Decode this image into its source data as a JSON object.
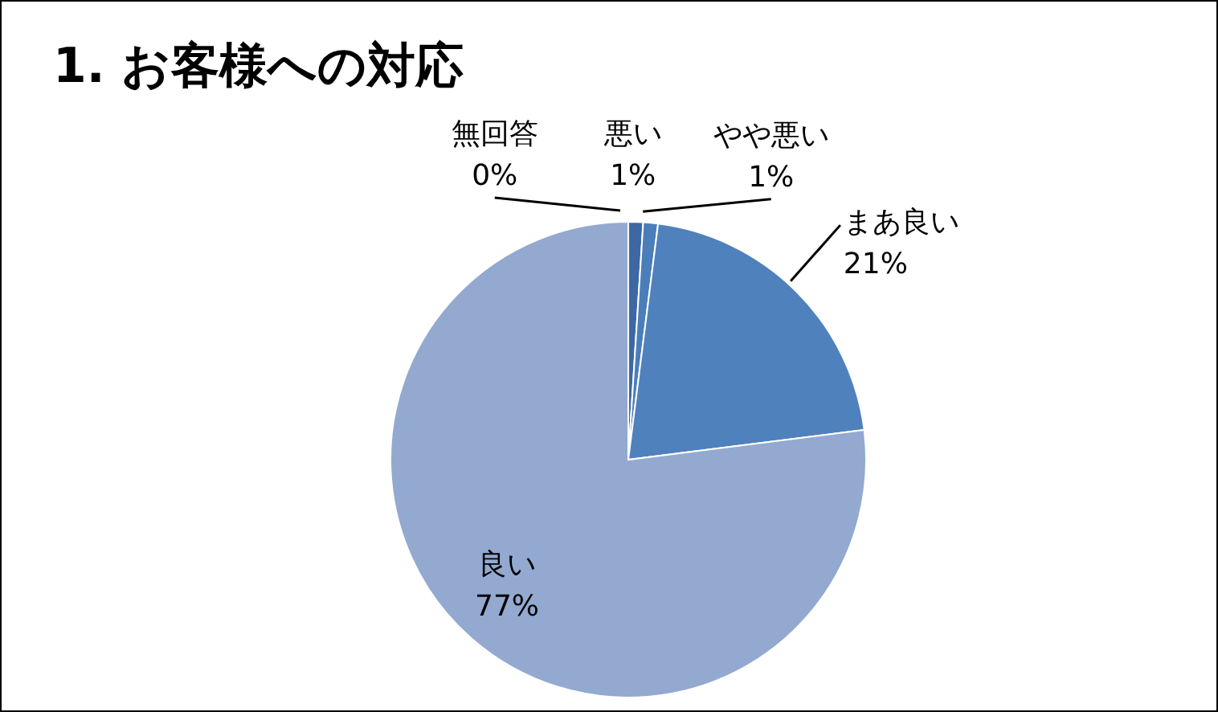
{
  "chart_data": {
    "type": "pie",
    "title": "1. お客様への対応",
    "categories": [
      "悪い",
      "やや悪い",
      "まあ良い",
      "良い",
      "無回答"
    ],
    "values": [
      1,
      1,
      21,
      77,
      0
    ],
    "value_labels": [
      "1%",
      "1%",
      "21%",
      "77%",
      "0%"
    ],
    "colors": [
      "#3d68a3",
      "#4a7ebb",
      "#4f81bd",
      "#93a9cf",
      "#bcc8e1"
    ],
    "legend": false
  }
}
